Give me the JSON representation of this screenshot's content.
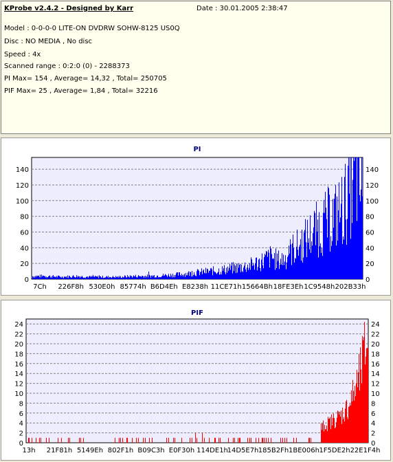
{
  "header": {
    "title": "KProbe v2.4.2 - Designed by Karr",
    "date": "Date : 30.01.2005 2:38:47"
  },
  "info_lines": [
    "Model : 0-0-0-0 LITE-ON DVDRW SOHW-8125  US0Q",
    "Disc : NO MEDIA , No disc",
    "Speed : 4x",
    "Scanned range : 0:2:0 (0) - 2288373",
    "PI Max= 154 , Average= 14,32 , Total= 250705",
    "PIF Max= 25 , Average= 1,84 , Total= 32216"
  ],
  "colors": {
    "info_background": "#ffffee",
    "plot_background": "#eeeeff",
    "pi_series": "#0000ff",
    "pif_series": "#ff0000",
    "title": "#000080",
    "grid": "#808080"
  },
  "chart_data": [
    {
      "type": "area",
      "title": "PI",
      "xlabel": "",
      "ylabel": "",
      "y_ticks": [
        0,
        20,
        40,
        60,
        80,
        100,
        120,
        140
      ],
      "x_tick_labels": [
        "7Ch",
        "226F8h",
        "530E0h",
        "85774h",
        "B6D4Eh",
        "E8238h",
        "11CE71h",
        "15664Bh",
        "18FE3Eh",
        "1C9548h",
        "202B33h"
      ],
      "x_range": [
        0,
        2288373
      ],
      "ylim": [
        0,
        155
      ],
      "grid": true,
      "series": [
        {
          "name": "PI",
          "x": [
            0,
            100000,
            200000,
            300000,
            400000,
            500000,
            600000,
            700000,
            800000,
            900000,
            1000000,
            1100000,
            1200000,
            1300000,
            1400000,
            1500000,
            1600000,
            1650000,
            1700000,
            1750000,
            1800000,
            1850000,
            1900000,
            1950000,
            2000000,
            2050000,
            2100000,
            2150000,
            2200000,
            2230000,
            2260000,
            2288373
          ],
          "values": [
            4,
            4,
            3,
            4,
            3,
            3,
            3,
            4,
            4,
            5,
            6,
            8,
            10,
            12,
            15,
            18,
            25,
            30,
            25,
            28,
            40,
            45,
            55,
            65,
            70,
            80,
            85,
            95,
            120,
            140,
            130,
            110
          ]
        }
      ]
    },
    {
      "type": "bar",
      "title": "PIF",
      "xlabel": "",
      "ylabel": "",
      "y_ticks": [
        0,
        2,
        4,
        6,
        8,
        10,
        12,
        14,
        16,
        18,
        20,
        22,
        24
      ],
      "x_tick_labels": [
        "13h",
        "21F81h",
        "5149Eh",
        "802F1h",
        "B09C3h",
        "E0F30h",
        "114DE1h",
        "14D5E7h",
        "185B2Fh",
        "1BE006h",
        "1F5DE2h",
        "22E1F4h"
      ],
      "x_range": [
        0,
        2288373
      ],
      "ylim": [
        0,
        25
      ],
      "grid": true,
      "series": [
        {
          "name": "PIF",
          "x": [
            0,
            100000,
            200000,
            300000,
            400000,
            500000,
            600000,
            700000,
            800000,
            900000,
            1000000,
            1100000,
            1200000,
            1300000,
            1400000,
            1500000,
            1600000,
            1700000,
            1800000,
            1850000,
            1900000,
            1950000,
            2000000,
            2050000,
            2100000,
            2150000,
            2200000,
            2230000,
            2260000,
            2288373
          ],
          "values": [
            1,
            0,
            1,
            0,
            1,
            1,
            0,
            1,
            0,
            1,
            0,
            1,
            1,
            1,
            1,
            1,
            1,
            1,
            1,
            2,
            2,
            3,
            4,
            5,
            6,
            8,
            12,
            15,
            20,
            25
          ]
        }
      ]
    }
  ]
}
